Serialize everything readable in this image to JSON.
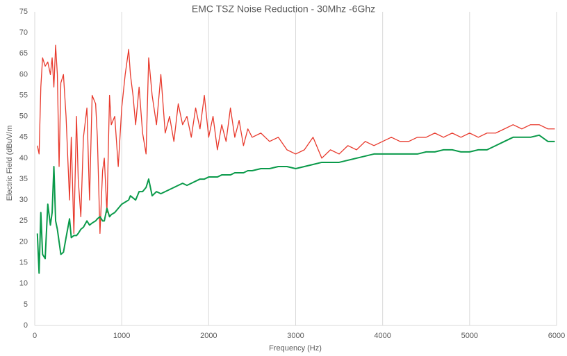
{
  "chart_data": {
    "type": "line",
    "title": "EMC TSZ Noise Reduction - 30Mhz -6Ghz",
    "x_label": "Frequency (Hz)",
    "y_label": "Electric Field (dBuV/m",
    "x": [
      30,
      50,
      70,
      90,
      120,
      150,
      180,
      200,
      220,
      240,
      260,
      280,
      300,
      330,
      360,
      400,
      420,
      450,
      480,
      500,
      530,
      560,
      600,
      630,
      660,
      700,
      720,
      750,
      780,
      800,
      830,
      860,
      880,
      920,
      960,
      1000,
      1040,
      1080,
      1100,
      1130,
      1160,
      1200,
      1240,
      1280,
      1310,
      1350,
      1400,
      1450,
      1500,
      1550,
      1600,
      1650,
      1700,
      1750,
      1800,
      1850,
      1900,
      1950,
      2000,
      2050,
      2100,
      2150,
      2200,
      2250,
      2300,
      2350,
      2400,
      2450,
      2500,
      2600,
      2700,
      2800,
      2900,
      3000,
      3100,
      3200,
      3300,
      3400,
      3500,
      3600,
      3700,
      3800,
      3900,
      4000,
      4100,
      4200,
      4300,
      4400,
      4500,
      4600,
      4700,
      4800,
      4900,
      5000,
      5100,
      5200,
      5300,
      5400,
      5500,
      5600,
      5700,
      5800,
      5900,
      5980
    ],
    "series": [
      {
        "color": "#e8392c",
        "values": [
          43,
          41,
          57,
          64,
          62,
          63,
          60,
          64,
          57,
          67,
          60,
          38,
          58,
          60,
          50,
          30,
          45,
          22,
          50,
          35,
          26,
          45,
          52,
          30,
          55,
          53,
          45,
          22,
          37,
          40,
          27,
          55,
          48,
          50,
          38,
          52,
          60,
          66,
          60,
          55,
          48,
          57,
          46,
          41,
          64,
          55,
          48,
          60,
          46,
          50,
          44,
          53,
          48,
          50,
          45,
          52,
          47,
          55,
          45,
          50,
          42,
          48,
          44,
          52,
          45,
          49,
          43,
          47,
          45,
          46,
          44,
          45,
          42,
          41,
          42,
          45,
          40,
          42,
          41,
          43,
          42,
          44,
          43,
          44,
          45,
          44,
          44,
          45,
          45,
          46,
          45,
          46,
          45,
          46,
          45,
          46,
          46,
          47,
          48,
          47,
          48,
          48,
          47,
          47
        ]
      },
      {
        "color": "#0a9a4a",
        "values": [
          22,
          12.5,
          27,
          17,
          16,
          29,
          24,
          27,
          38,
          25,
          23,
          20,
          17,
          17.5,
          21,
          25.5,
          21,
          21.5,
          21.5,
          22,
          23,
          23.5,
          25,
          24,
          24.5,
          25,
          25.5,
          26,
          25,
          25,
          28,
          26,
          26.5,
          27,
          28,
          29,
          29.5,
          30,
          31,
          30.5,
          30,
          32,
          32,
          33,
          35,
          31,
          32,
          31.5,
          32,
          32.5,
          33,
          33.5,
          34,
          33.5,
          34,
          34.5,
          35,
          35,
          35.5,
          35.5,
          35.5,
          36,
          36,
          36,
          36.5,
          36.5,
          36.5,
          37,
          37,
          37.5,
          37.5,
          38,
          38,
          37.5,
          38,
          38.5,
          39,
          39,
          39,
          39.5,
          40,
          40.5,
          41,
          41,
          41,
          41,
          41,
          41,
          41.5,
          41.5,
          42,
          42,
          41.5,
          41.5,
          42,
          42,
          43,
          44,
          45,
          45,
          45,
          45.5,
          44,
          44
        ]
      }
    ],
    "xlim": [
      0,
      6000
    ],
    "xticks": [
      0,
      1000,
      2000,
      3000,
      4000,
      5000,
      6000
    ],
    "ylim": [
      0,
      75
    ],
    "yticks": [
      0,
      5,
      10,
      15,
      20,
      25,
      30,
      35,
      40,
      45,
      50,
      55,
      60,
      65,
      70,
      75
    ],
    "grid": "x"
  }
}
